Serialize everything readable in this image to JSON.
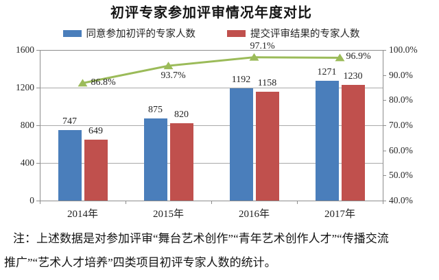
{
  "chart_data": {
    "type": "bar",
    "subtype": "grouped-bars-with-line-overlay",
    "title": "初评专家参加评审情况年度对比",
    "categories": [
      "2014年",
      "2015年",
      "2016年",
      "2017年"
    ],
    "series": [
      {
        "type": "bar",
        "name": "同意参加初评的专家人数",
        "color": "#4A7EBB",
        "values": [
          747,
          875,
          1192,
          1271
        ]
      },
      {
        "type": "bar",
        "name": "提交评审结果的专家人数",
        "color": "#C0504D",
        "values": [
          649,
          820,
          1158,
          1230
        ]
      },
      {
        "type": "line",
        "name": "",
        "color": "#9BBB59",
        "axis": "right",
        "marker": "triangle",
        "values": [
          86.8,
          93.7,
          97.1,
          96.9
        ],
        "point_labels": [
          "86.8%",
          "93.7%",
          "97.1%",
          "96.9%"
        ]
      }
    ],
    "left_axis": {
      "min": 0,
      "max": 1600,
      "step": 400,
      "tick_labels": [
        "0",
        "400",
        "800",
        "1200",
        "1600"
      ]
    },
    "right_axis": {
      "min": 40,
      "max": 100,
      "step": 10,
      "tick_labels": [
        "40.0%",
        "50.0%",
        "60.0%",
        "70.0%",
        "80.0%",
        "90.0%",
        "100.0%"
      ]
    },
    "legend_position": "top",
    "grid": true,
    "axis_color": "#8c8c8c",
    "grid_color": "#a8a8a8",
    "value_labels_shown": true
  },
  "note": {
    "line1": "注：上述数据是对参加评审“舞台艺术创作”“青年艺术创作人才”“传播交流",
    "line2": "推广”“艺术人才培养”四类项目初评专家人数的统计。"
  }
}
